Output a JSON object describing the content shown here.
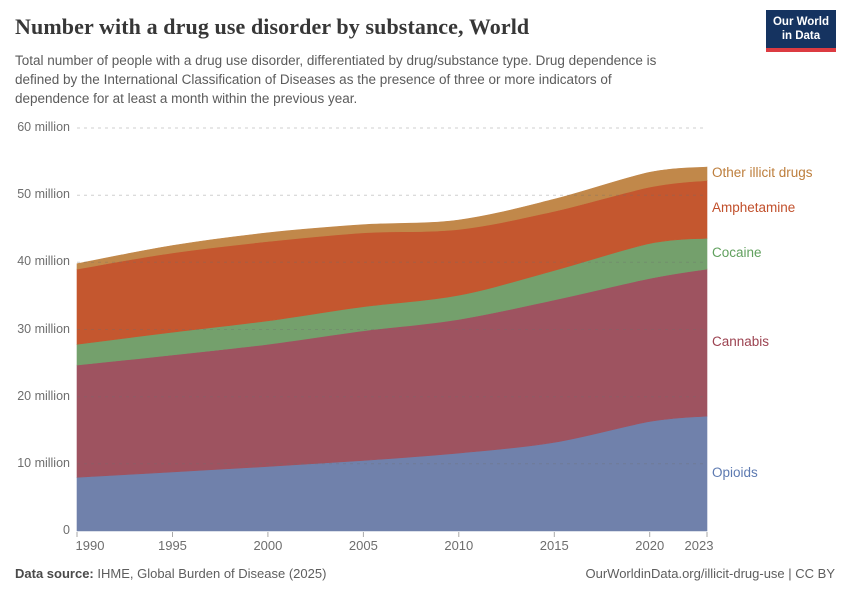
{
  "header": {
    "title": "Number with a drug use disorder by substance, World",
    "subtitle": "Total number of people with a drug use disorder, differentiated by drug/substance type. Drug dependence is defined by the International Classification of Diseases as the presence of three or more indicators of dependence for at least a month within the previous year.",
    "logo": {
      "line1": "Our World",
      "line2": "in Data"
    }
  },
  "footer": {
    "source_label": "Data source:",
    "source": "IHME, Global Burden of Disease (2025)",
    "link": "OurWorldinData.org/illicit-drug-use | CC BY"
  },
  "chart_data": {
    "type": "area",
    "stacked": true,
    "title": "Number with a drug use disorder by substance, World",
    "xlabel": "",
    "ylabel": "",
    "unit": "million people",
    "x": [
      1990,
      1995,
      2000,
      2005,
      2010,
      2015,
      2020,
      2023
    ],
    "series": [
      {
        "name": "Opioids",
        "color": "#7081ab",
        "label_color": "#5d7ab1",
        "values": [
          8.0,
          8.8,
          9.6,
          10.5,
          11.6,
          13.2,
          16.3,
          17.1
        ]
      },
      {
        "name": "Cannabis",
        "color": "#9e5360",
        "label_color": "#9c4351",
        "values": [
          16.7,
          17.4,
          18.2,
          19.3,
          19.9,
          21.2,
          21.3,
          21.9
        ]
      },
      {
        "name": "Cocaine",
        "color": "#74a06c",
        "label_color": "#61a05e",
        "values": [
          3.1,
          3.4,
          3.5,
          3.6,
          3.6,
          4.4,
          5.2,
          4.6
        ]
      },
      {
        "name": "Amphetamine",
        "color": "#c4572f",
        "label_color": "#c1502c",
        "values": [
          11.2,
          11.8,
          11.8,
          11.0,
          9.8,
          8.8,
          8.4,
          8.6
        ]
      },
      {
        "name": "Other illicit drugs",
        "color": "#c1884a",
        "label_color": "#bd7e3c",
        "values": [
          0.8,
          1.1,
          1.3,
          1.2,
          1.4,
          1.8,
          2.2,
          2.0
        ]
      }
    ],
    "totals": [
      39.8,
      42.5,
      44.4,
      45.6,
      46.3,
      49.4,
      53.4,
      54.2
    ],
    "ylim": [
      0,
      60
    ],
    "yticks": [
      {
        "value": 0,
        "label": "0"
      },
      {
        "value": 10,
        "label": "10 million"
      },
      {
        "value": 20,
        "label": "20 million"
      },
      {
        "value": 30,
        "label": "30 million"
      },
      {
        "value": 40,
        "label": "40 million"
      },
      {
        "value": 50,
        "label": "50 million"
      },
      {
        "value": 60,
        "label": "60 million"
      }
    ],
    "xticks": [
      "1990",
      "1995",
      "2000",
      "2005",
      "2010",
      "2015",
      "2020",
      "2023"
    ],
    "grid": "horizontal-dashed",
    "legend_position": "right-edge-labels"
  }
}
